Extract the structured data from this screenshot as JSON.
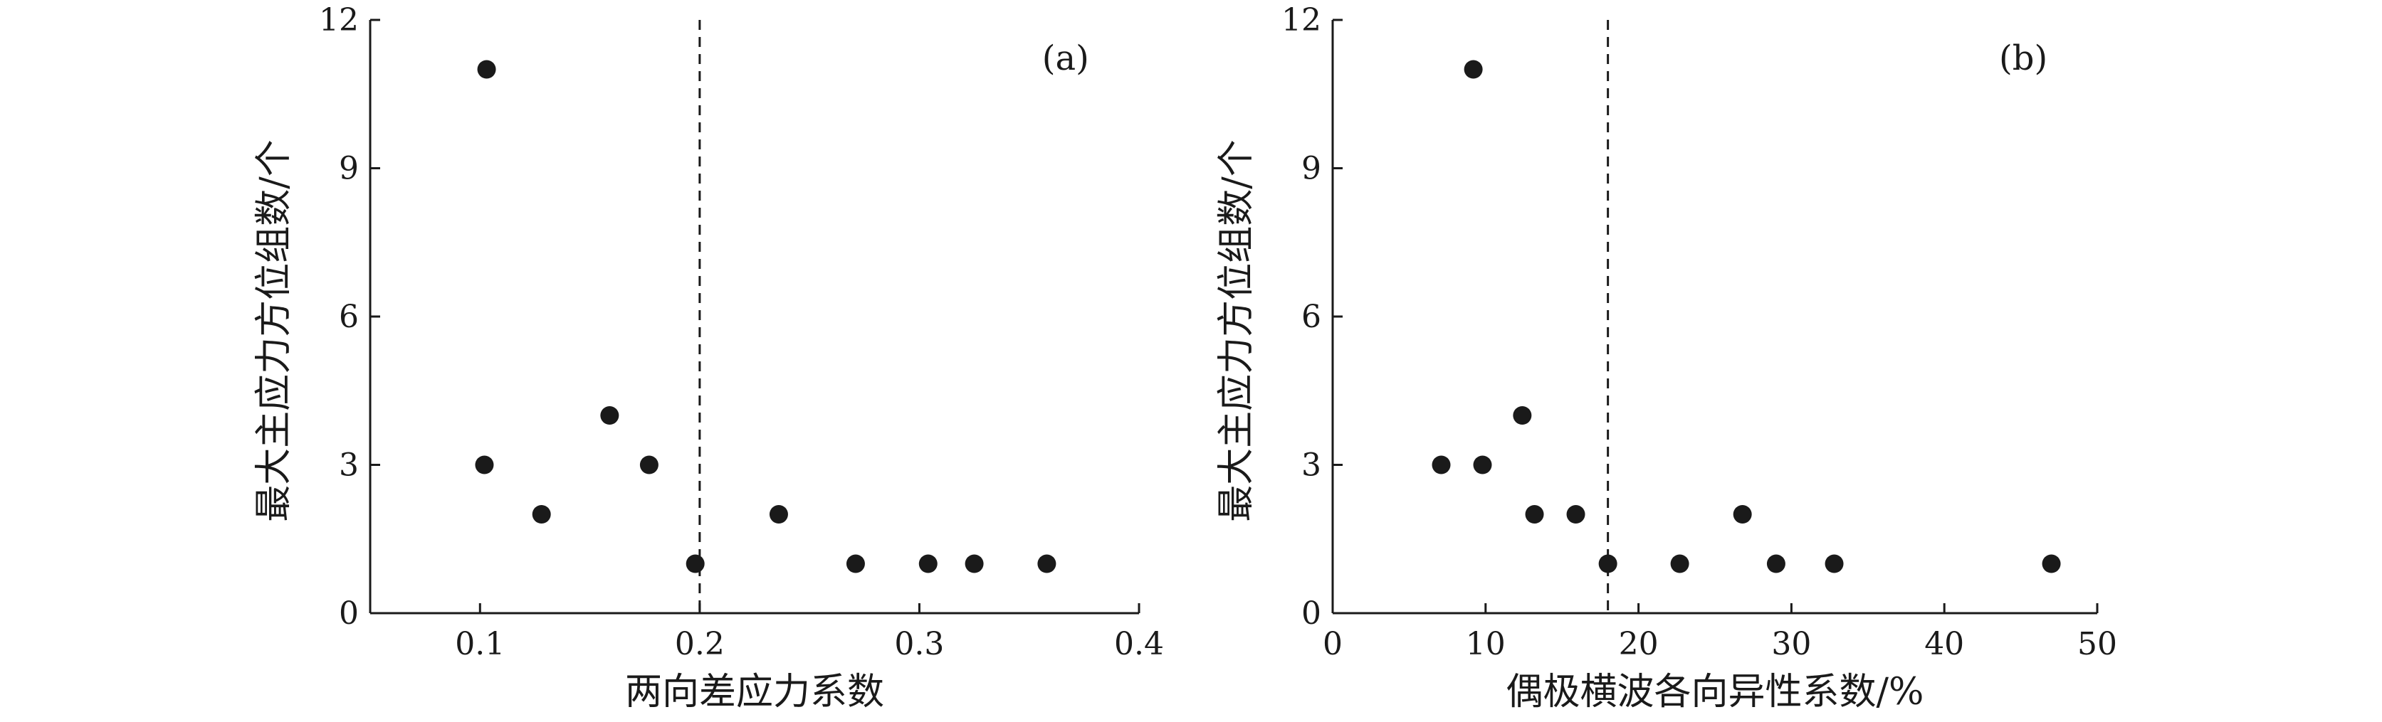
{
  "chart_data": [
    {
      "type": "scatter",
      "panel_label": "(a)",
      "xlabel": "两向差应力系数",
      "ylabel": "最大主应力方位组数/个",
      "xlim": [
        0.05,
        0.4
      ],
      "ylim": [
        0,
        12
      ],
      "xticks": [
        0.1,
        0.2,
        0.3,
        0.4
      ],
      "xtick_labels": [
        "0.1",
        "0.2",
        "0.3",
        "0.4"
      ],
      "yticks": [
        0,
        3,
        6,
        9,
        12
      ],
      "ytick_labels": [
        "0",
        "3",
        "6",
        "9",
        "12"
      ],
      "reference_line_x": 0.2,
      "points": [
        {
          "x": 0.103,
          "y": 11
        },
        {
          "x": 0.102,
          "y": 3
        },
        {
          "x": 0.128,
          "y": 2
        },
        {
          "x": 0.159,
          "y": 4
        },
        {
          "x": 0.177,
          "y": 3
        },
        {
          "x": 0.198,
          "y": 1
        },
        {
          "x": 0.236,
          "y": 2
        },
        {
          "x": 0.271,
          "y": 1
        },
        {
          "x": 0.304,
          "y": 1
        },
        {
          "x": 0.325,
          "y": 1
        },
        {
          "x": 0.358,
          "y": 1
        }
      ],
      "grid": false,
      "legend": "none"
    },
    {
      "type": "scatter",
      "panel_label": "(b)",
      "xlabel": "偶极横波各向异性系数/%",
      "ylabel": "最大主应力方位组数/个",
      "xlim": [
        0,
        50
      ],
      "ylim": [
        0,
        12
      ],
      "xticks": [
        0,
        10,
        20,
        30,
        40,
        50
      ],
      "xtick_labels": [
        "0",
        "10",
        "20",
        "30",
        "40",
        "50"
      ],
      "yticks": [
        0,
        3,
        6,
        9,
        12
      ],
      "ytick_labels": [
        "0",
        "3",
        "6",
        "9",
        "12"
      ],
      "reference_line_x": 18,
      "points": [
        {
          "x": 9.2,
          "y": 11
        },
        {
          "x": 7.1,
          "y": 3
        },
        {
          "x": 9.8,
          "y": 3
        },
        {
          "x": 12.4,
          "y": 4
        },
        {
          "x": 13.2,
          "y": 2
        },
        {
          "x": 15.9,
          "y": 2
        },
        {
          "x": 18.0,
          "y": 1
        },
        {
          "x": 22.7,
          "y": 1
        },
        {
          "x": 26.8,
          "y": 2
        },
        {
          "x": 29.0,
          "y": 1
        },
        {
          "x": 32.8,
          "y": 1
        },
        {
          "x": 47.0,
          "y": 1
        }
      ],
      "grid": false,
      "legend": "none"
    }
  ]
}
